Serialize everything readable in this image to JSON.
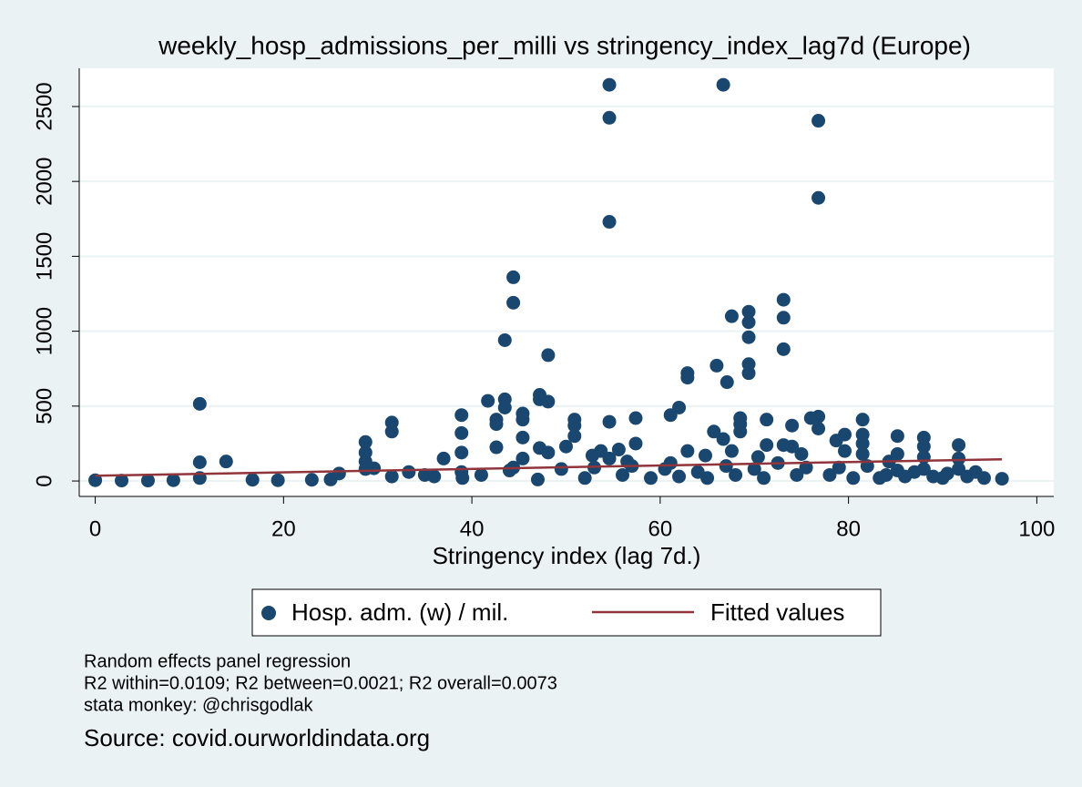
{
  "chart_data": {
    "type": "scatter",
    "title": "weekly_hosp_admissions_per_milli vs stringency_index_lag7d (Europe)",
    "x_label": "Stringency index (lag 7d.)",
    "notes": [
      "Random effects panel regression",
      "R2 within=0.0109; R2 between=0.0021; R2 overall=0.0073",
      "stata monkey: @chrisgodlak"
    ],
    "source": "Source: covid.ourworldindata.org",
    "xlim": [
      -1.7,
      101.8
    ],
    "ylim": [
      -103,
      2755
    ],
    "xticks": [
      0,
      20,
      40,
      60,
      80,
      100
    ],
    "yticks": [
      0,
      500,
      1000,
      1500,
      2000,
      2500
    ],
    "grid": true,
    "legend": "bottom",
    "series": [
      {
        "name": "Hosp. adm. (w) / mil.",
        "color": "#1a476f",
        "type": "scatter",
        "x": [
          0,
          2.8,
          5.6,
          8.3,
          11.1,
          11.1,
          11.1,
          13.9,
          16.7,
          19.4,
          23,
          25,
          25.9,
          28.7,
          28.7,
          28.7,
          28.7,
          29.6,
          31.5,
          31.5,
          31.5,
          33.3,
          35,
          37,
          38.9,
          38.9,
          38.9,
          38.9,
          41.7,
          42.6,
          42.6,
          42.6,
          43.5,
          43.5,
          43.5,
          44.4,
          44.4,
          44.4,
          45.4,
          45.4,
          45.4,
          45.4,
          47.2,
          47.2,
          47.2,
          48.1,
          48.1,
          48.1,
          50,
          50.9,
          50.9,
          50.9,
          52.8,
          53.7,
          54.6,
          54.6,
          54.6,
          54.6,
          54.6,
          55.6,
          56.5,
          57.4,
          57.4,
          61.1,
          61.1,
          62,
          62.9,
          62.9,
          62.9,
          64.8,
          65.7,
          66,
          66.7,
          66.7,
          67.1,
          67.6,
          67.6,
          68.5,
          68.5,
          68.5,
          69.4,
          69.4,
          69.4,
          69.4,
          69.4,
          70.4,
          71.3,
          71.3,
          73.1,
          73.1,
          73.1,
          73.1,
          74,
          74,
          75,
          76,
          76.8,
          76.8,
          76.8,
          76.8,
          78.7,
          79.6,
          79.6,
          81.5,
          81.5,
          81.5,
          81.5,
          83.3,
          84.3,
          85.2,
          85.2,
          85.2,
          88,
          88,
          88,
          88,
          90,
          91.7,
          91.7,
          91.7,
          92.6,
          93.5,
          94.4,
          96.3,
          36,
          39,
          41,
          44,
          47,
          49.5,
          52,
          53,
          56,
          57,
          59,
          60.5,
          62,
          64,
          65,
          67,
          68,
          70,
          71,
          72.5,
          74.5,
          75.5,
          78,
          79,
          80.5,
          82,
          84,
          87,
          90.5,
          86,
          89
        ],
        "values": [
          5,
          3,
          3,
          5,
          515,
          125,
          20,
          130,
          8,
          5,
          8,
          10,
          50,
          260,
          190,
          130,
          80,
          85,
          390,
          330,
          30,
          60,
          40,
          150,
          440,
          320,
          190,
          60,
          535,
          410,
          380,
          225,
          940,
          545,
          490,
          1360,
          1190,
          90,
          450,
          410,
          290,
          150,
          575,
          545,
          220,
          840,
          530,
          190,
          230,
          410,
          370,
          300,
          170,
          200,
          2645,
          2425,
          1730,
          395,
          150,
          210,
          130,
          420,
          250,
          440,
          120,
          490,
          720,
          690,
          200,
          170,
          330,
          770,
          2645,
          280,
          660,
          1100,
          200,
          420,
          380,
          330,
          1130,
          1060,
          960,
          780,
          720,
          160,
          410,
          240,
          1210,
          1090,
          880,
          240,
          370,
          230,
          180,
          420,
          2405,
          1890,
          430,
          350,
          270,
          310,
          200,
          410,
          310,
          250,
          180,
          20,
          130,
          300,
          180,
          70,
          290,
          230,
          160,
          80,
          20,
          240,
          150,
          80,
          30,
          60,
          20,
          15,
          30,
          20,
          40,
          70,
          10,
          80,
          20,
          90,
          40,
          100,
          20,
          80,
          30,
          60,
          20,
          100,
          40,
          80,
          20,
          120,
          40,
          90,
          40,
          90,
          20,
          100,
          40,
          60,
          50,
          30,
          30
        ]
      },
      {
        "name": "Fitted values",
        "color": "#90353b",
        "type": "line",
        "x": [
          0,
          96.3
        ],
        "values": [
          35,
          145
        ]
      }
    ]
  }
}
